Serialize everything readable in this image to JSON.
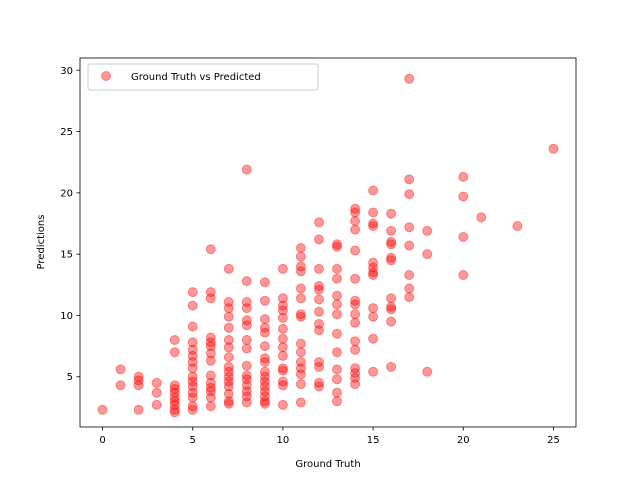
{
  "chart_data": {
    "type": "scatter",
    "title": "",
    "xlabel": "Ground Truth",
    "ylabel": "Predictions",
    "xlim": [
      -1.25,
      26.25
    ],
    "ylim": [
      0.9,
      31.0
    ],
    "xticks": [
      0,
      5,
      10,
      15,
      20,
      25
    ],
    "yticks": [
      5,
      10,
      15,
      20,
      25,
      30
    ],
    "grid": false,
    "legend": {
      "position": "upper-left",
      "entries": [
        "Ground Truth vs Predicted"
      ]
    },
    "colors": {
      "marker": "#ff0000",
      "marker_alpha": 0.4,
      "axes": "#000000",
      "background": "#ffffff"
    },
    "series": [
      {
        "name": "Ground Truth vs Predicted",
        "points": [
          [
            0,
            2.3
          ],
          [
            1,
            5.6
          ],
          [
            1,
            4.3
          ],
          [
            2,
            5.0
          ],
          [
            2,
            4.7
          ],
          [
            2,
            4.3
          ],
          [
            2,
            2.3
          ],
          [
            3,
            4.5
          ],
          [
            3,
            3.7
          ],
          [
            3,
            2.7
          ],
          [
            4,
            8.0
          ],
          [
            4,
            7.0
          ],
          [
            4,
            4.3
          ],
          [
            4,
            4.0
          ],
          [
            4,
            3.7
          ],
          [
            4,
            3.3
          ],
          [
            4,
            3.0
          ],
          [
            4,
            2.7
          ],
          [
            4,
            2.3
          ],
          [
            4,
            2.1
          ],
          [
            5,
            11.9
          ],
          [
            5,
            10.8
          ],
          [
            5,
            9.1
          ],
          [
            5,
            7.8
          ],
          [
            5,
            7.2
          ],
          [
            5,
            6.7
          ],
          [
            5,
            6.2
          ],
          [
            5,
            5.7
          ],
          [
            5,
            5.0
          ],
          [
            5,
            4.6
          ],
          [
            5,
            4.2
          ],
          [
            5,
            3.7
          ],
          [
            5,
            3.3
          ],
          [
            5,
            2.6
          ],
          [
            5,
            2.3
          ],
          [
            6,
            15.4
          ],
          [
            6,
            11.9
          ],
          [
            6,
            11.4
          ],
          [
            6,
            8.2
          ],
          [
            6,
            7.8
          ],
          [
            6,
            7.5
          ],
          [
            6,
            6.9
          ],
          [
            6,
            6.3
          ],
          [
            6,
            5.1
          ],
          [
            6,
            4.5
          ],
          [
            6,
            4.1
          ],
          [
            6,
            3.8
          ],
          [
            6,
            3.3
          ],
          [
            6,
            2.6
          ],
          [
            7,
            13.8
          ],
          [
            7,
            11.1
          ],
          [
            7,
            10.6
          ],
          [
            7,
            9.9
          ],
          [
            7,
            9.0
          ],
          [
            7,
            8.0
          ],
          [
            7,
            7.4
          ],
          [
            7,
            6.6
          ],
          [
            7,
            5.8
          ],
          [
            7,
            5.4
          ],
          [
            7,
            5.0
          ],
          [
            7,
            4.6
          ],
          [
            7,
            4.2
          ],
          [
            7,
            3.6
          ],
          [
            7,
            3.0
          ],
          [
            7,
            2.8
          ],
          [
            8,
            21.9
          ],
          [
            8,
            12.8
          ],
          [
            8,
            11.1
          ],
          [
            8,
            10.6
          ],
          [
            8,
            9.6
          ],
          [
            8,
            9.2
          ],
          [
            8,
            8.0
          ],
          [
            8,
            7.3
          ],
          [
            8,
            5.9
          ],
          [
            8,
            5.1
          ],
          [
            8,
            4.8
          ],
          [
            8,
            4.3
          ],
          [
            8,
            3.8
          ],
          [
            8,
            3.4
          ],
          [
            8,
            2.9
          ],
          [
            9,
            12.7
          ],
          [
            9,
            11.2
          ],
          [
            9,
            9.7
          ],
          [
            9,
            9.0
          ],
          [
            9,
            8.6
          ],
          [
            9,
            7.5
          ],
          [
            9,
            6.5
          ],
          [
            9,
            6.2
          ],
          [
            9,
            5.4
          ],
          [
            9,
            5.0
          ],
          [
            9,
            4.6
          ],
          [
            9,
            4.2
          ],
          [
            9,
            3.8
          ],
          [
            9,
            3.4
          ],
          [
            9,
            3.0
          ],
          [
            9,
            2.8
          ],
          [
            10,
            13.8
          ],
          [
            10,
            11.4
          ],
          [
            10,
            10.8
          ],
          [
            10,
            10.4
          ],
          [
            10,
            9.8
          ],
          [
            10,
            8.9
          ],
          [
            10,
            8.1
          ],
          [
            10,
            7.4
          ],
          [
            10,
            6.7
          ],
          [
            10,
            5.7
          ],
          [
            10,
            5.5
          ],
          [
            10,
            4.6
          ],
          [
            10,
            4.3
          ],
          [
            10,
            2.7
          ],
          [
            11,
            15.5
          ],
          [
            11,
            14.8
          ],
          [
            11,
            14.0
          ],
          [
            11,
            13.6
          ],
          [
            11,
            12.2
          ],
          [
            11,
            11.4
          ],
          [
            11,
            10.1
          ],
          [
            11,
            9.9
          ],
          [
            11,
            7.7
          ],
          [
            11,
            7.0
          ],
          [
            11,
            6.2
          ],
          [
            11,
            5.7
          ],
          [
            11,
            5.2
          ],
          [
            11,
            4.4
          ],
          [
            11,
            2.9
          ],
          [
            12,
            17.6
          ],
          [
            12,
            16.2
          ],
          [
            12,
            13.8
          ],
          [
            12,
            12.4
          ],
          [
            12,
            12.1
          ],
          [
            12,
            11.3
          ],
          [
            12,
            10.3
          ],
          [
            12,
            9.3
          ],
          [
            12,
            8.8
          ],
          [
            12,
            6.2
          ],
          [
            12,
            5.8
          ],
          [
            12,
            4.5
          ],
          [
            12,
            4.2
          ],
          [
            13,
            15.8
          ],
          [
            13,
            15.6
          ],
          [
            13,
            13.8
          ],
          [
            13,
            13.0
          ],
          [
            13,
            11.6
          ],
          [
            13,
            10.9
          ],
          [
            13,
            10.1
          ],
          [
            13,
            8.5
          ],
          [
            13,
            7.0
          ],
          [
            13,
            5.6
          ],
          [
            13,
            4.8
          ],
          [
            13,
            3.7
          ],
          [
            13,
            3.0
          ],
          [
            14,
            18.7
          ],
          [
            14,
            18.4
          ],
          [
            14,
            17.7
          ],
          [
            14,
            17.0
          ],
          [
            14,
            15.3
          ],
          [
            14,
            13.0
          ],
          [
            14,
            11.2
          ],
          [
            14,
            10.9
          ],
          [
            14,
            10.1
          ],
          [
            14,
            9.4
          ],
          [
            14,
            7.9
          ],
          [
            14,
            7.2
          ],
          [
            14,
            5.7
          ],
          [
            14,
            5.3
          ],
          [
            14,
            4.9
          ],
          [
            14,
            4.4
          ],
          [
            15,
            20.2
          ],
          [
            15,
            18.4
          ],
          [
            15,
            17.5
          ],
          [
            15,
            17.3
          ],
          [
            15,
            14.3
          ],
          [
            15,
            13.9
          ],
          [
            15,
            13.5
          ],
          [
            15,
            13.3
          ],
          [
            15,
            10.6
          ],
          [
            15,
            9.9
          ],
          [
            15,
            8.1
          ],
          [
            15,
            5.4
          ],
          [
            16,
            18.3
          ],
          [
            16,
            16.9
          ],
          [
            16,
            16.0
          ],
          [
            16,
            15.8
          ],
          [
            16,
            14.7
          ],
          [
            16,
            14.5
          ],
          [
            16,
            11.4
          ],
          [
            16,
            10.7
          ],
          [
            16,
            10.5
          ],
          [
            16,
            9.5
          ],
          [
            16,
            5.8
          ],
          [
            17,
            29.3
          ],
          [
            17,
            21.1
          ],
          [
            17,
            19.9
          ],
          [
            17,
            17.2
          ],
          [
            17,
            15.7
          ],
          [
            17,
            13.3
          ],
          [
            17,
            12.2
          ],
          [
            17,
            11.5
          ],
          [
            18,
            16.9
          ],
          [
            18,
            15.0
          ],
          [
            18,
            5.4
          ],
          [
            20,
            21.3
          ],
          [
            20,
            19.7
          ],
          [
            20,
            16.4
          ],
          [
            20,
            13.3
          ],
          [
            21,
            18.0
          ],
          [
            23,
            17.3
          ],
          [
            25,
            23.6
          ]
        ]
      }
    ]
  }
}
